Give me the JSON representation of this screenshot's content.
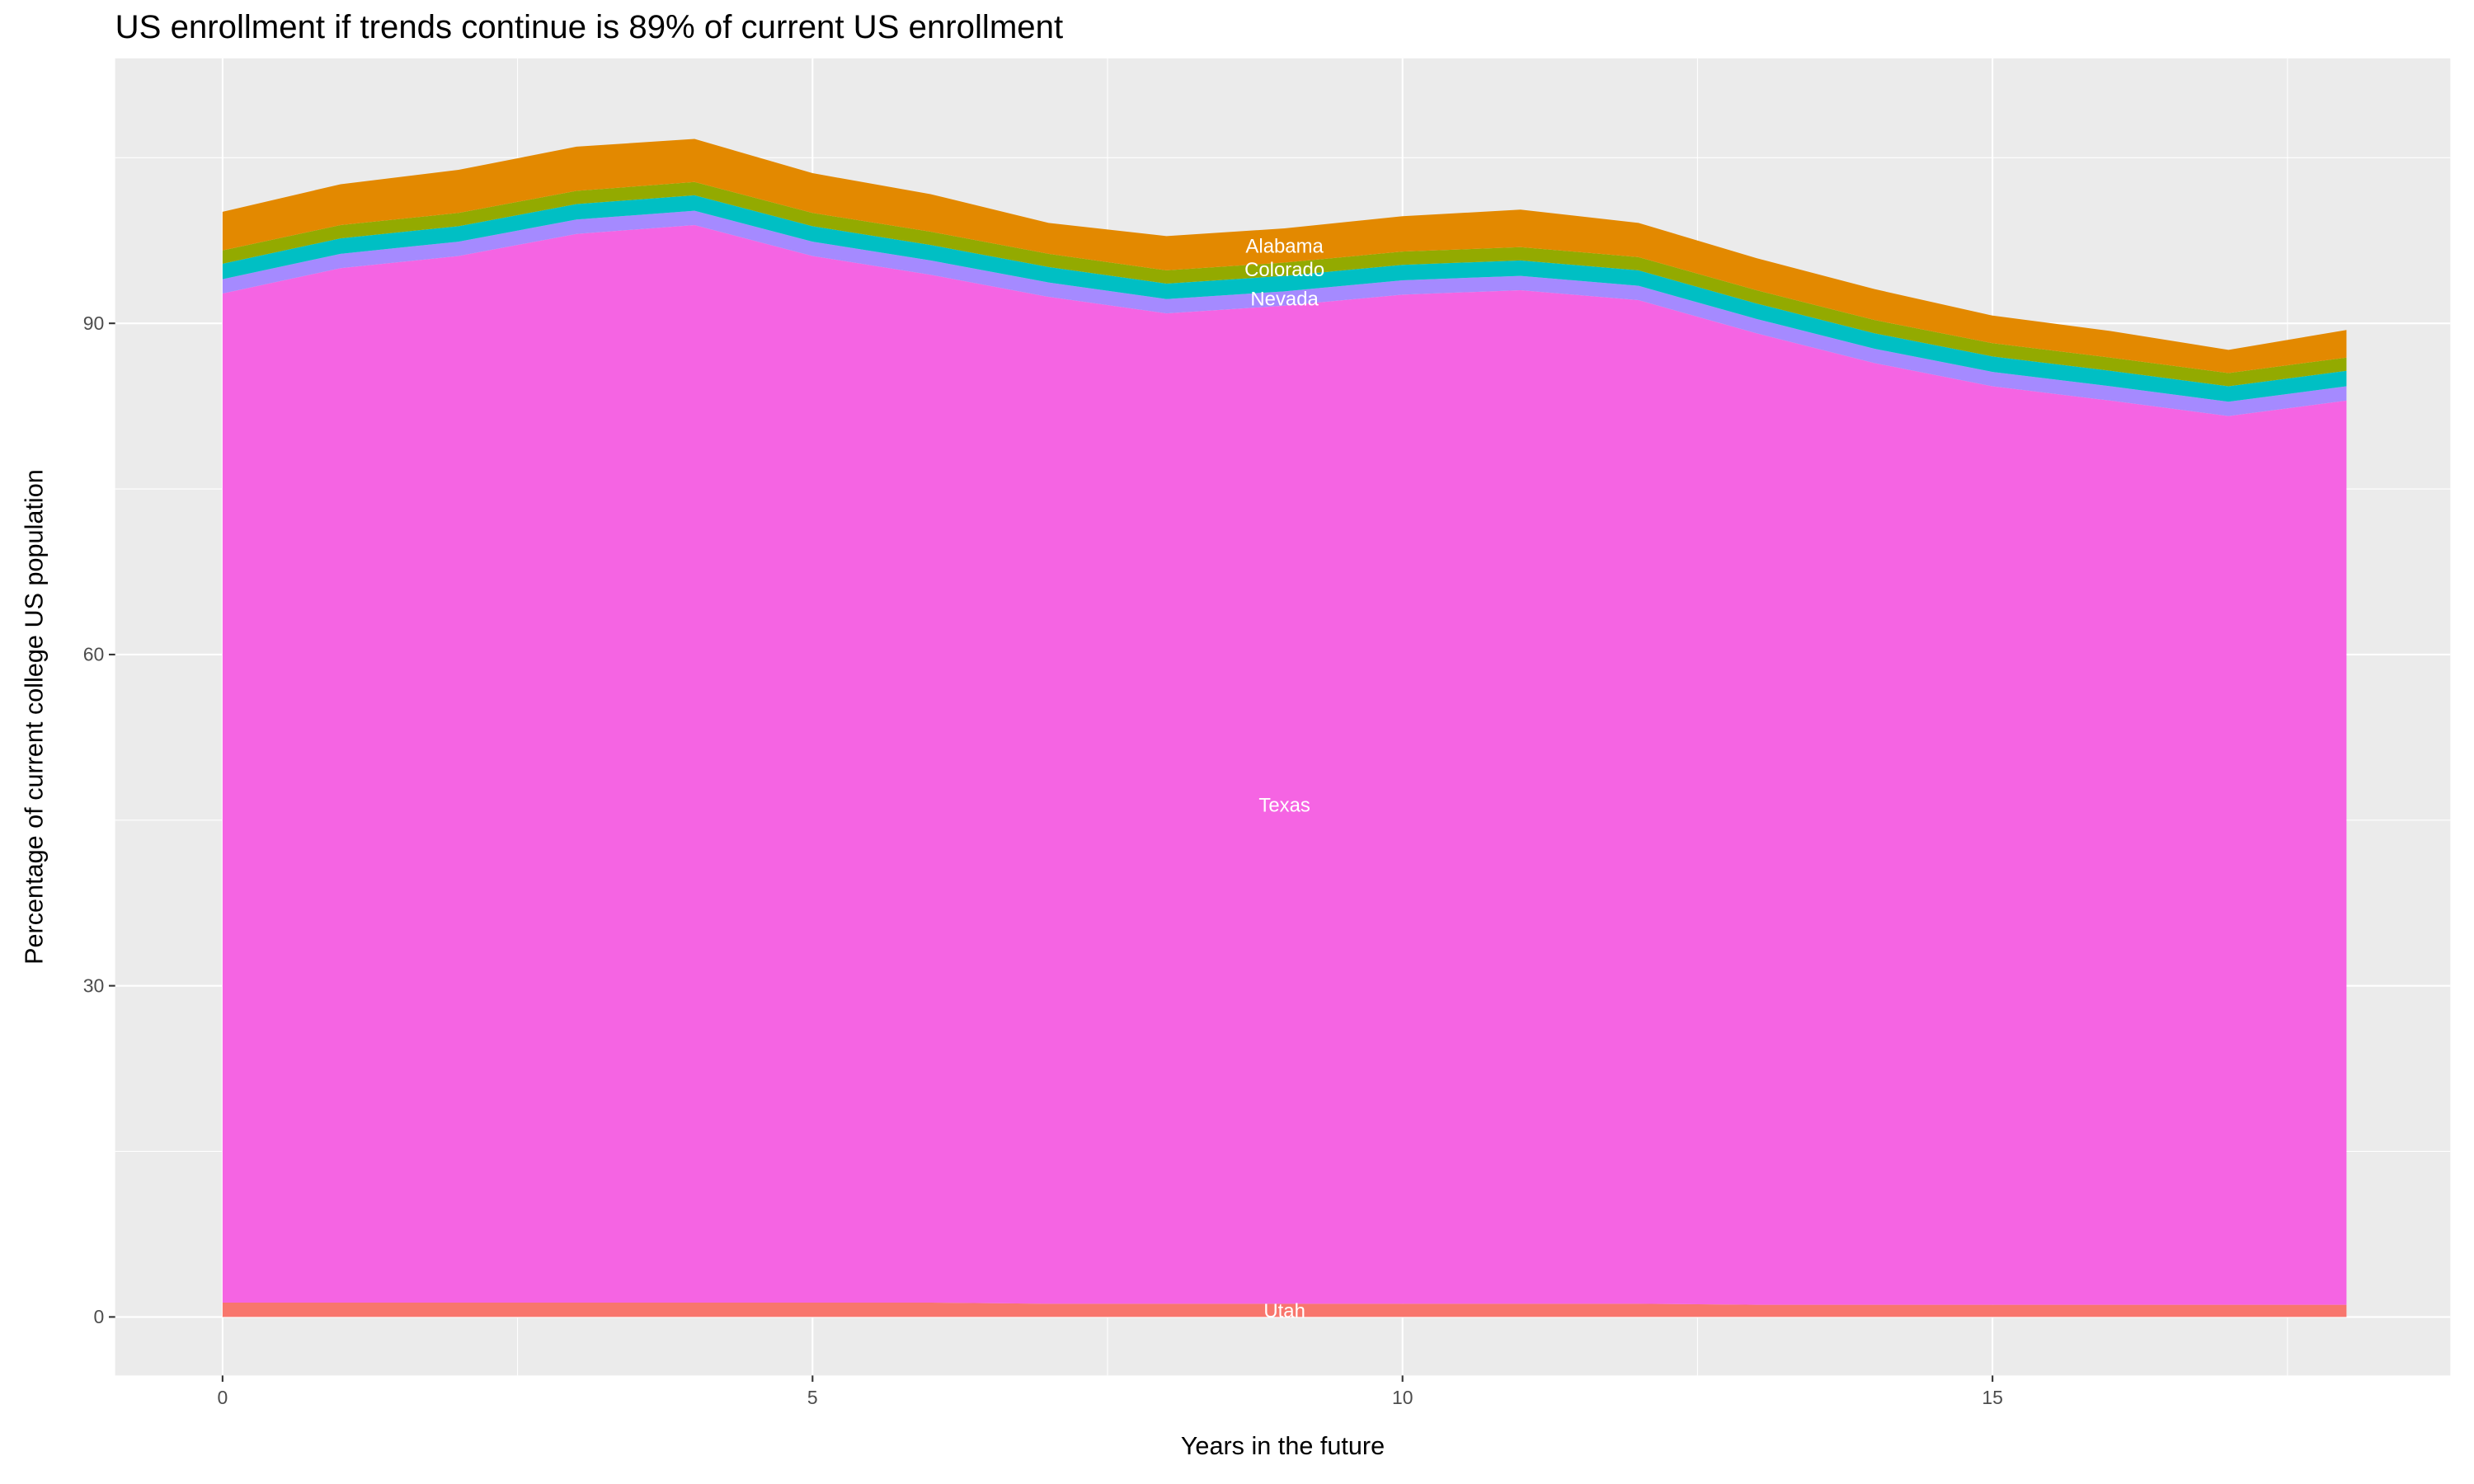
{
  "chart_data": {
    "type": "stacked_area",
    "title": "US enrollment if trends continue is 89% of current US enrollment",
    "x_label": "Years in the future",
    "y_label": "Percentage of current college US population",
    "x": [
      0,
      1,
      2,
      3,
      4,
      5,
      6,
      7,
      8,
      9,
      10,
      11,
      12,
      13,
      14,
      15,
      16,
      17,
      18
    ],
    "series": [
      {
        "name": "Utah",
        "color": "#f8766d",
        "values": [
          1.3,
          1.3,
          1.3,
          1.3,
          1.3,
          1.3,
          1.3,
          1.2,
          1.2,
          1.2,
          1.2,
          1.2,
          1.2,
          1.1,
          1.1,
          1.1,
          1.1,
          1.1,
          1.1
        ]
      },
      {
        "name": "Texas",
        "color": "#f564e3",
        "values": [
          91.4,
          93.7,
          94.8,
          96.8,
          97.6,
          94.8,
          93.1,
          91.2,
          89.7,
          90.4,
          91.4,
          91.8,
          90.9,
          88.0,
          85.3,
          83.2,
          81.9,
          80.5,
          81.9
        ]
      },
      {
        "name": "Nevada",
        "color": "#a58aff",
        "values": [
          1.3,
          1.3,
          1.3,
          1.3,
          1.3,
          1.3,
          1.3,
          1.3,
          1.3,
          1.3,
          1.3,
          1.3,
          1.3,
          1.3,
          1.3,
          1.3,
          1.3,
          1.3,
          1.3
        ]
      },
      {
        "color": "#00bfc4",
        "values": [
          1.4,
          1.4,
          1.4,
          1.4,
          1.4,
          1.4,
          1.4,
          1.4,
          1.4,
          1.4,
          1.4,
          1.4,
          1.4,
          1.4,
          1.4,
          1.4,
          1.4,
          1.4,
          1.4
        ]
      },
      {
        "name": "Colorado",
        "color": "#93aa00",
        "values": [
          1.2,
          1.2,
          1.2,
          1.2,
          1.2,
          1.2,
          1.2,
          1.2,
          1.2,
          1.2,
          1.2,
          1.2,
          1.2,
          1.2,
          1.2,
          1.2,
          1.2,
          1.2,
          1.2
        ]
      },
      {
        "name": "Alabama",
        "color": "#e38900",
        "values": [
          3.5,
          3.7,
          3.9,
          4.0,
          3.9,
          3.6,
          3.4,
          2.8,
          3.1,
          3.1,
          3.2,
          3.4,
          3.1,
          2.9,
          2.8,
          2.5,
          2.4,
          2.1,
          2.5
        ]
      }
    ],
    "xlim": [
      -0.91,
      18.88
    ],
    "ylim": [
      -5.3,
      114
    ],
    "xticks": [
      0,
      5,
      10,
      15
    ],
    "yticks": [
      0,
      30,
      60,
      90
    ],
    "grid": true
  }
}
